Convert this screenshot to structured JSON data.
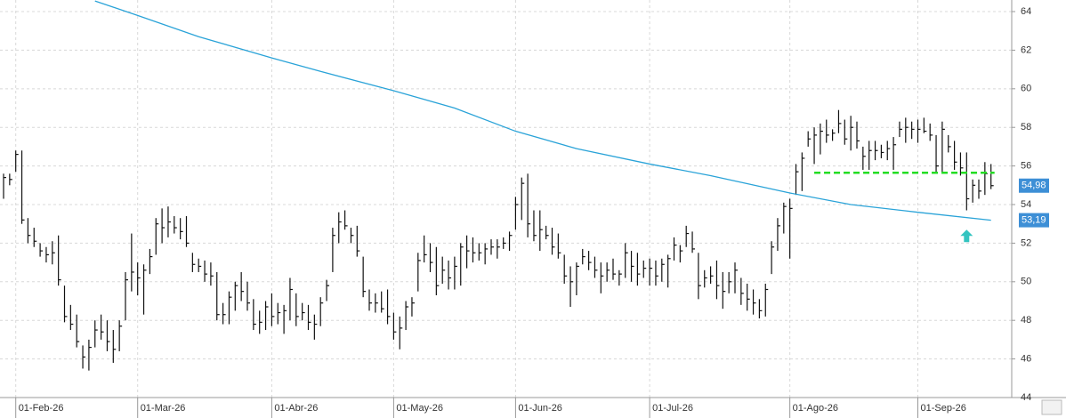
{
  "chart_data": {
    "type": "ohlc",
    "x": [
      "2026-01-29",
      "2026-01-30",
      "2026-02-02",
      "2026-02-03",
      "2026-02-04",
      "2026-02-05",
      "2026-02-06",
      "2026-02-09",
      "2026-02-10",
      "2026-02-11",
      "2026-02-12",
      "2026-02-13",
      "2026-02-16",
      "2026-02-17",
      "2026-02-18",
      "2026-02-19",
      "2026-02-20",
      "2026-02-23",
      "2026-02-24",
      "2026-02-25",
      "2026-02-26",
      "2026-02-27",
      "2026-03-02",
      "2026-03-03",
      "2026-03-04",
      "2026-03-05",
      "2026-03-06",
      "2026-03-09",
      "2026-03-10",
      "2026-03-11",
      "2026-03-12",
      "2026-03-13",
      "2026-03-16",
      "2026-03-17",
      "2026-03-18",
      "2026-03-19",
      "2026-03-20",
      "2026-03-23",
      "2026-03-24",
      "2026-03-25",
      "2026-03-26",
      "2026-03-27",
      "2026-03-30",
      "2026-03-31",
      "2026-04-01",
      "2026-04-02",
      "2026-04-07",
      "2026-04-08",
      "2026-04-09",
      "2026-04-10",
      "2026-04-13",
      "2026-04-14",
      "2026-04-15",
      "2026-04-16",
      "2026-04-17",
      "2026-04-20",
      "2026-04-21",
      "2026-04-22",
      "2026-04-23",
      "2026-04-24",
      "2026-04-27",
      "2026-04-28",
      "2026-04-29",
      "2026-04-30",
      "2026-05-04",
      "2026-05-05",
      "2026-05-06",
      "2026-05-07",
      "2026-05-08",
      "2026-05-11",
      "2026-05-12",
      "2026-05-13",
      "2026-05-14",
      "2026-05-15",
      "2026-05-18",
      "2026-05-19",
      "2026-05-20",
      "2026-05-21",
      "2026-05-22",
      "2026-05-25",
      "2026-05-26",
      "2026-05-27",
      "2026-05-28",
      "2026-05-29",
      "2026-06-01",
      "2026-06-02",
      "2026-06-03",
      "2026-06-04",
      "2026-06-05",
      "2026-06-08",
      "2026-06-09",
      "2026-06-10",
      "2026-06-11",
      "2026-06-12",
      "2026-06-15",
      "2026-06-16",
      "2026-06-17",
      "2026-06-18",
      "2026-06-19",
      "2026-06-22",
      "2026-06-23",
      "2026-06-24",
      "2026-06-25",
      "2026-06-26",
      "2026-06-29",
      "2026-06-30",
      "2026-07-01",
      "2026-07-02",
      "2026-07-03",
      "2026-07-06",
      "2026-07-07",
      "2026-07-08",
      "2026-07-09",
      "2026-07-10",
      "2026-07-13",
      "2026-07-14",
      "2026-07-15",
      "2026-07-16",
      "2026-07-17",
      "2026-07-20",
      "2026-07-21",
      "2026-07-22",
      "2026-07-23",
      "2026-07-24",
      "2026-07-27",
      "2026-07-28",
      "2026-07-29",
      "2026-07-30",
      "2026-07-31",
      "2026-08-03",
      "2026-08-04",
      "2026-08-05",
      "2026-08-06",
      "2026-08-07",
      "2026-08-10",
      "2026-08-11",
      "2026-08-12",
      "2026-08-13",
      "2026-08-14",
      "2026-08-17",
      "2026-08-18",
      "2026-08-19",
      "2026-08-20",
      "2026-08-21",
      "2026-08-24",
      "2026-08-25",
      "2026-08-26",
      "2026-08-27",
      "2026-08-28",
      "2026-08-31",
      "2026-09-01",
      "2026-09-02",
      "2026-09-03",
      "2026-09-04",
      "2026-09-07",
      "2026-09-08",
      "2026-09-09",
      "2026-09-10",
      "2026-09-11",
      "2026-09-14",
      "2026-09-15",
      "2026-09-16",
      "2026-09-17"
    ],
    "high": [
      55.6,
      55.6,
      56.8,
      56.8,
      53.3,
      52.8,
      52,
      51.8,
      52.1,
      52.4,
      49.8,
      48.8,
      48.3,
      46.7,
      47,
      48,
      48.3,
      48,
      47.5,
      48,
      50.5,
      52.5,
      51,
      50.9,
      51.7,
      53.3,
      53.8,
      53.9,
      53.4,
      53.3,
      53.4,
      51.5,
      51.2,
      51.1,
      51,
      50.5,
      48.9,
      49.5,
      50,
      50.5,
      50,
      49.1,
      48.5,
      49,
      49.4,
      48.9,
      48.8,
      50.2,
      49.4,
      48.9,
      48.8,
      48.3,
      49.2,
      50.1,
      52.8,
      53.6,
      53.7,
      52.8,
      52.9,
      51.3,
      49.6,
      49.4,
      49.5,
      49.6,
      48.4,
      48.2,
      49,
      49.2,
      51.5,
      52.4,
      52,
      51.8,
      51.3,
      51.1,
      51.3,
      52,
      52.4,
      52.3,
      52,
      52,
      52.2,
      52.2,
      52.3,
      52.6,
      54.4,
      55.4,
      55.6,
      53.7,
      53.7,
      52.9,
      52.8,
      52.5,
      51.4,
      50.8,
      51,
      51.7,
      51.6,
      51.3,
      51,
      51,
      51.2,
      50.6,
      52,
      51.6,
      51.5,
      51.1,
      51.2,
      51.1,
      51.2,
      51.4,
      52.3,
      51.9,
      52.9,
      52.6,
      51.5,
      50.6,
      50.8,
      51.1,
      50.5,
      50.5,
      51,
      50.2,
      49.9,
      49.6,
      49.1,
      49.9,
      52.1,
      53.3,
      54.1,
      54.3,
      56.1,
      56.7,
      57.8,
      58,
      58.2,
      58.4,
      57.9,
      58.9,
      58.4,
      58.6,
      58.3,
      57,
      57.3,
      57.3,
      57.1,
      57.3,
      57.5,
      58.3,
      58.5,
      58.3,
      58.4,
      58.5,
      58.2,
      57.6,
      58.3,
      57.6,
      57.3,
      56.7,
      56.7,
      55.3,
      55.3,
      56.2,
      56.1
    ],
    "low": [
      54.3,
      55,
      55.7,
      53,
      52,
      51.8,
      51.3,
      51,
      50.9,
      49.8,
      47.9,
      47.5,
      46.6,
      45.5,
      45.4,
      46.6,
      47,
      46.4,
      45.8,
      46.4,
      48,
      49.5,
      49.3,
      48.3,
      50.4,
      51.4,
      52,
      52.3,
      52.5,
      52.2,
      51.8,
      50.5,
      50.5,
      50,
      49.8,
      48,
      47.8,
      47.8,
      48.5,
      49,
      48.5,
      47.5,
      47.3,
      47.5,
      47.7,
      47.8,
      47.3,
      48,
      47.7,
      48,
      47.5,
      47,
      47.7,
      49,
      50.5,
      52,
      52.7,
      52,
      51.3,
      49.2,
      48.5,
      48.4,
      48.4,
      47.8,
      47,
      46.5,
      47.5,
      48.2,
      49.5,
      51,
      50.5,
      49.3,
      49.9,
      49.6,
      49.6,
      49.8,
      50.7,
      51,
      51.1,
      50.9,
      51.4,
      51.2,
      51.7,
      51.6,
      52.7,
      53.2,
      52.3,
      52.1,
      51.6,
      52.2,
      51.4,
      51.2,
      49.9,
      48.7,
      49.3,
      50.9,
      50.6,
      50.2,
      49.4,
      50,
      50.1,
      49.8,
      50.2,
      50,
      49.8,
      50.2,
      49.8,
      49.8,
      50,
      49.7,
      51.1,
      51,
      51.8,
      51.5,
      49.1,
      49.7,
      49.9,
      49.1,
      48.6,
      49.4,
      49.4,
      48.8,
      48.5,
      48.3,
      48.1,
      48.2,
      50.4,
      51.6,
      52.5,
      51.2,
      54.5,
      54.7,
      57,
      56.1,
      56.6,
      57.2,
      57.3,
      57.7,
      57.1,
      56.8,
      56.9,
      55.8,
      55.8,
      56.3,
      56.4,
      56.3,
      55.8,
      57.5,
      57.2,
      57.4,
      57.2,
      57.7,
      57.3,
      55.7,
      55.7,
      56.7,
      55.8,
      55.5,
      53.7,
      54.1,
      54.3,
      54.5,
      54.8
    ],
    "close": [
      55.4,
      55.3,
      56.6,
      53.2,
      52.4,
      52.1,
      51.6,
      51.4,
      51.5,
      50.1,
      48.2,
      47.8,
      46.9,
      46.1,
      46.6,
      47.5,
      47.4,
      46.9,
      46.5,
      47.7,
      50.1,
      50.5,
      50.2,
      50.6,
      51.3,
      53,
      52.8,
      53.1,
      52.8,
      52.6,
      52,
      50.9,
      50.8,
      50.4,
      50.3,
      48.3,
      48.3,
      49.2,
      49.8,
      49.5,
      48.9,
      47.8,
      47.9,
      48.7,
      48.2,
      48.4,
      48.5,
      49.6,
      48.2,
      48.4,
      47.9,
      47.8,
      48.9,
      49.8,
      52.4,
      53.1,
      52.9,
      52.4,
      51.6,
      49.5,
      48.9,
      48.9,
      48.6,
      48.2,
      47.4,
      47.6,
      48.7,
      48.9,
      51.1,
      51.4,
      51,
      49.8,
      50.6,
      50.2,
      50.8,
      51.8,
      51.6,
      51.5,
      51.5,
      51.7,
      51.8,
      51.8,
      52,
      52.4,
      54,
      55.1,
      53,
      52.4,
      52.7,
      52.4,
      51.8,
      51.5,
      50.3,
      50,
      50.8,
      51.3,
      51,
      50.6,
      50.3,
      50.6,
      50.4,
      50.4,
      51.5,
      50.8,
      50.4,
      50.7,
      50.7,
      50.3,
      50.9,
      51.2,
      51.9,
      51.6,
      52.5,
      51.7,
      49.8,
      50.2,
      50.3,
      49.8,
      49.5,
      50,
      50.6,
      49.4,
      49.1,
      48.9,
      48.5,
      49.6,
      51.8,
      52.9,
      53.9,
      53.8,
      55.7,
      56.4,
      57.4,
      57.6,
      57.8,
      57.6,
      57.7,
      58.2,
      57.4,
      58,
      57.3,
      56.5,
      56.8,
      56.8,
      56.7,
      56.9,
      57.1,
      57.9,
      58,
      57.9,
      57.9,
      57.8,
      57.6,
      56,
      57.9,
      57,
      56.2,
      55.9,
      54.3,
      55,
      54.7,
      55.6,
      54.98
    ],
    "color": "#111111",
    "moving_average": {
      "color": "#2aa3d8",
      "x": [
        "2026-02-19",
        "2026-03-02",
        "2026-03-16",
        "2026-04-01",
        "2026-04-15",
        "2026-05-04",
        "2026-05-18",
        "2026-06-01",
        "2026-06-15",
        "2026-07-01",
        "2026-07-15",
        "2026-08-03",
        "2026-08-17",
        "2026-09-01",
        "2026-09-17"
      ],
      "values": [
        64.55,
        63.8,
        62.7,
        61.6,
        60.9,
        59.9,
        59,
        57.8,
        56.9,
        56.1,
        55.5,
        54.6,
        54,
        53.6,
        53.19
      ]
    },
    "level_line": {
      "value": 55.65,
      "start": "2026-08-07",
      "end": "2026-09-17",
      "color": "#22dd22"
    },
    "arrow": {
      "x": "2026-09-11",
      "value": 52.7,
      "color": "#33c4c0"
    },
    "price_labels": [
      {
        "value": 54.98,
        "label": "54,98",
        "color": "#3d8fd6"
      },
      {
        "value": 53.19,
        "label": "53,19",
        "color": "#3d8fd6"
      }
    ],
    "ylim": [
      44,
      64.6
    ],
    "yticks": [
      44,
      46,
      48,
      50,
      52,
      54,
      56,
      58,
      60,
      62,
      64
    ],
    "xticks": [
      {
        "value": "2026-02-01",
        "label": "01-Feb-26"
      },
      {
        "value": "2026-03-01",
        "label": "01-Mar-26"
      },
      {
        "value": "2026-04-01",
        "label": "01-Abr-26"
      },
      {
        "value": "2026-05-01",
        "label": "01-May-26"
      },
      {
        "value": "2026-06-01",
        "label": "01-Jun-26"
      },
      {
        "value": "2026-07-01",
        "label": "01-Jul-26"
      },
      {
        "value": "2026-08-01",
        "label": "01-Ago-26"
      },
      {
        "value": "2026-09-01",
        "label": "01-Sep-26"
      }
    ],
    "grid": true
  }
}
